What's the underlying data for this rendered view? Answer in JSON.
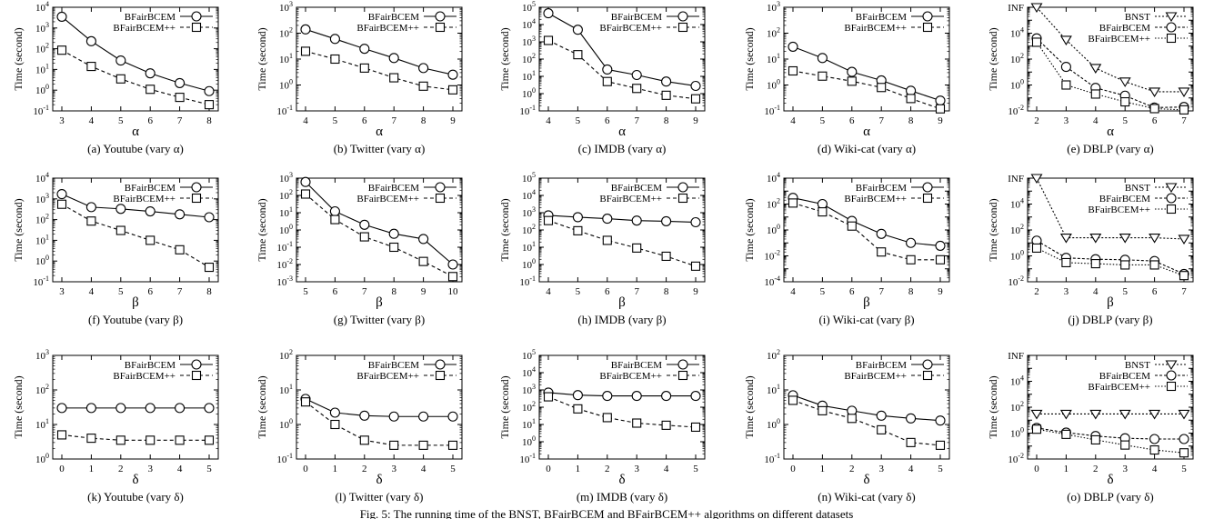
{
  "figure_caption": "Fig. 5: The running time of the BNST, BFairBCEM and BFairBCEM++ algorithms on different datasets",
  "chart_data": [
    {
      "type": "line",
      "caption": "(a)  Youtube (vary α)",
      "xlabel": "α",
      "ylabel": "Time (second)",
      "x": [
        3,
        4,
        5,
        6,
        7,
        8
      ],
      "ylim_exp": [
        -1,
        4
      ],
      "log_y": true,
      "series": [
        {
          "name": "BFairBCEM",
          "values": [
            3500,
            230,
            27,
            6.5,
            2.2,
            0.9
          ]
        },
        {
          "name": "BFairBCEM++",
          "values": [
            85,
            14,
            3.5,
            1.1,
            0.45,
            0.2
          ]
        }
      ]
    },
    {
      "type": "line",
      "caption": "(b)  Twitter (vary α)",
      "xlabel": "α",
      "ylabel": "Time (second)",
      "x": [
        4,
        5,
        6,
        7,
        8,
        9
      ],
      "ylim_exp": [
        -1,
        3
      ],
      "log_y": true,
      "series": [
        {
          "name": "BFairBCEM",
          "values": [
            140,
            60,
            25,
            11,
            4.5,
            2.5
          ]
        },
        {
          "name": "BFairBCEM++",
          "values": [
            20,
            10,
            4.5,
            1.9,
            0.9,
            0.65
          ]
        }
      ]
    },
    {
      "type": "line",
      "caption": "(c)  IMDB (vary α)",
      "xlabel": "α",
      "ylabel": "Time (second)",
      "x": [
        4,
        5,
        6,
        7,
        8,
        9
      ],
      "ylim_exp": [
        -1,
        5
      ],
      "log_y": true,
      "series": [
        {
          "name": "BFairBCEM",
          "values": [
            45000,
            5000,
            25,
            12,
            5,
            2.8
          ]
        },
        {
          "name": "BFairBCEM++",
          "values": [
            1200,
            180,
            5,
            2,
            0.8,
            0.5
          ]
        }
      ]
    },
    {
      "type": "line",
      "caption": "(d)  Wiki-cat (vary α)",
      "xlabel": "α",
      "ylabel": "Time (second)",
      "x": [
        4,
        5,
        6,
        7,
        8,
        9
      ],
      "ylim_exp": [
        -1,
        3
      ],
      "log_y": true,
      "series": [
        {
          "name": "BFairBCEM",
          "values": [
            30,
            11,
            3.2,
            1.5,
            0.6,
            0.25
          ]
        },
        {
          "name": "BFairBCEM++",
          "values": [
            3.5,
            2.2,
            1.4,
            0.8,
            0.3,
            0.12
          ]
        }
      ]
    },
    {
      "type": "line",
      "caption": "(e)  DBLP (vary α)",
      "xlabel": "α",
      "ylabel": "Time (second)",
      "x": [
        2,
        3,
        4,
        5,
        6,
        7
      ],
      "ylim_exp": [
        -2,
        6
      ],
      "top_label": "INF",
      "log_y": true,
      "series": [
        {
          "name": "BNST",
          "values": [
            1000000,
            3000,
            20,
            1.8,
            0.3,
            0.3
          ]
        },
        {
          "name": "BFairBCEM",
          "values": [
            4000,
            25,
            0.6,
            0.15,
            0.018,
            0.02
          ]
        },
        {
          "name": "BFairBCEM++",
          "values": [
            2000,
            1,
            0.2,
            0.05,
            0.015,
            0.012
          ]
        }
      ]
    },
    {
      "type": "line",
      "caption": "(f)  Youtube (vary β)",
      "xlabel": "β",
      "ylabel": "Time (second)",
      "x": [
        3,
        4,
        5,
        6,
        7,
        8
      ],
      "ylim_exp": [
        -1,
        4
      ],
      "log_y": true,
      "series": [
        {
          "name": "BFairBCEM",
          "values": [
            1700,
            400,
            330,
            250,
            180,
            130
          ]
        },
        {
          "name": "BFairBCEM++",
          "values": [
            550,
            85,
            30,
            10,
            3.5,
            0.5
          ]
        }
      ]
    },
    {
      "type": "line",
      "caption": "(g)  Twitter (vary β)",
      "xlabel": "β",
      "ylabel": "Time (second)",
      "x": [
        5,
        6,
        7,
        8,
        9,
        10
      ],
      "ylim_exp": [
        -3,
        3
      ],
      "log_y": true,
      "series": [
        {
          "name": "BFairBCEM",
          "values": [
            600,
            12,
            2,
            0.6,
            0.3,
            0.01
          ]
        },
        {
          "name": "BFairBCEM++",
          "values": [
            120,
            4,
            0.4,
            0.1,
            0.015,
            0.002
          ]
        }
      ]
    },
    {
      "type": "line",
      "caption": "(h)  IMDB (vary β)",
      "xlabel": "β",
      "ylabel": "Time (second)",
      "x": [
        4,
        5,
        6,
        7,
        8,
        9
      ],
      "ylim_exp": [
        -1,
        5
      ],
      "log_y": true,
      "series": [
        {
          "name": "BFairBCEM",
          "values": [
            700,
            550,
            450,
            350,
            320,
            280
          ]
        },
        {
          "name": "BFairBCEM++",
          "values": [
            350,
            90,
            25,
            9,
            3,
            0.8
          ]
        }
      ]
    },
    {
      "type": "line",
      "caption": "(i)  Wiki-cat (vary β)",
      "xlabel": "β",
      "ylabel": "Time (second)",
      "x": [
        4,
        5,
        6,
        7,
        8,
        9
      ],
      "ylim_exp": [
        -4,
        4
      ],
      "log_y": true,
      "series": [
        {
          "name": "BFairBCEM",
          "values": [
            300,
            100,
            5,
            0.5,
            0.1,
            0.06
          ]
        },
        {
          "name": "BFairBCEM++",
          "values": [
            120,
            25,
            2,
            0.02,
            0.005,
            0.005
          ]
        }
      ]
    },
    {
      "type": "line",
      "caption": "(j)  DBLP (vary β)",
      "xlabel": "β",
      "ylabel": "Time (second)",
      "x": [
        2,
        3,
        4,
        5,
        6,
        7
      ],
      "ylim_exp": [
        -2,
        6
      ],
      "top_label": "INF",
      "log_y": true,
      "series": [
        {
          "name": "BNST",
          "values": [
            1000000,
            25,
            25,
            25,
            25,
            20
          ]
        },
        {
          "name": "BFairBCEM",
          "values": [
            15,
            0.7,
            0.55,
            0.5,
            0.4,
            0.04
          ]
        },
        {
          "name": "BFairBCEM++",
          "values": [
            4,
            0.3,
            0.25,
            0.2,
            0.2,
            0.03
          ]
        }
      ]
    },
    {
      "type": "line",
      "caption": "(k)  Youtube (vary δ)",
      "xlabel": "δ",
      "ylabel": "Time (second)",
      "x": [
        0,
        1,
        2,
        3,
        4,
        5
      ],
      "ylim_exp": [
        0,
        3
      ],
      "log_y": true,
      "series": [
        {
          "name": "BFairBCEM",
          "values": [
            30,
            30,
            30,
            30,
            30,
            30
          ]
        },
        {
          "name": "BFairBCEM++",
          "values": [
            5,
            4,
            3.5,
            3.5,
            3.5,
            3.5
          ]
        }
      ]
    },
    {
      "type": "line",
      "caption": "(l)  Twitter (vary δ)",
      "xlabel": "δ",
      "ylabel": "Time (second)",
      "x": [
        0,
        1,
        2,
        3,
        4,
        5
      ],
      "ylim_exp": [
        -1,
        2
      ],
      "log_y": true,
      "series": [
        {
          "name": "BFairBCEM",
          "values": [
            5.5,
            2.2,
            1.8,
            1.7,
            1.7,
            1.7
          ]
        },
        {
          "name": "BFairBCEM++",
          "values": [
            4.5,
            1,
            0.35,
            0.25,
            0.25,
            0.25
          ]
        }
      ]
    },
    {
      "type": "line",
      "caption": "(m)  IMDB (vary δ)",
      "xlabel": "δ",
      "ylabel": "Time (second)",
      "x": [
        0,
        1,
        2,
        3,
        4,
        5
      ],
      "ylim_exp": [
        -1,
        5
      ],
      "log_y": true,
      "series": [
        {
          "name": "BFairBCEM",
          "values": [
            700,
            500,
            450,
            450,
            450,
            450
          ]
        },
        {
          "name": "BFairBCEM++",
          "values": [
            400,
            80,
            25,
            12,
            9,
            7
          ]
        }
      ]
    },
    {
      "type": "line",
      "caption": "(n)  Wiki-cat (vary δ)",
      "xlabel": "δ",
      "ylabel": "Time (second)",
      "x": [
        0,
        1,
        2,
        3,
        4,
        5
      ],
      "ylim_exp": [
        -1,
        2
      ],
      "log_y": true,
      "series": [
        {
          "name": "BFairBCEM",
          "values": [
            7,
            3.5,
            2.5,
            1.8,
            1.5,
            1.3
          ]
        },
        {
          "name": "BFairBCEM++",
          "values": [
            5,
            2.5,
            1.5,
            0.7,
            0.3,
            0.25
          ]
        }
      ]
    },
    {
      "type": "line",
      "caption": "(o)  DBLP (vary δ)",
      "xlabel": "δ",
      "ylabel": "Time (second)",
      "x": [
        0,
        1,
        2,
        3,
        4,
        5
      ],
      "ylim_exp": [
        -2,
        6
      ],
      "top_label": "INF",
      "log_y": true,
      "series": [
        {
          "name": "BNST",
          "values": [
            30,
            30,
            30,
            30,
            30,
            30
          ]
        },
        {
          "name": "BFairBCEM",
          "values": [
            2.5,
            1.1,
            0.6,
            0.4,
            0.35,
            0.35
          ]
        },
        {
          "name": "BFairBCEM++",
          "values": [
            2,
            0.8,
            0.3,
            0.12,
            0.05,
            0.03
          ]
        }
      ]
    }
  ]
}
